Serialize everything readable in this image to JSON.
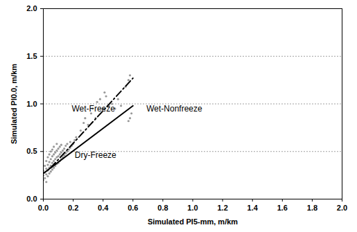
{
  "chart_data": {
    "type": "scatter",
    "x_label": "Simulated PI5-mm, m/km",
    "y_label": "Simulated PI0.0, m/km",
    "xlim": [
      0,
      2
    ],
    "ylim": [
      0,
      2
    ],
    "xticks": [
      {
        "value": 0,
        "label": "0.0"
      },
      {
        "value": 0.2,
        "label": "0.2"
      },
      {
        "value": 0.4,
        "label": "0.4"
      },
      {
        "value": 0.6,
        "label": "0.6"
      },
      {
        "value": 0.8,
        "label": "0.8"
      },
      {
        "value": 1,
        "label": "1.0"
      },
      {
        "value": 1.2,
        "label": "1.2"
      },
      {
        "value": 1.4,
        "label": "1.4"
      },
      {
        "value": 1.6,
        "label": "1.6"
      },
      {
        "value": 1.8,
        "label": "1.8"
      },
      {
        "value": 2,
        "label": "2.0"
      }
    ],
    "yticks": [
      {
        "value": 0,
        "label": "0.0"
      },
      {
        "value": 0.5,
        "label": "0.5"
      },
      {
        "value": 1,
        "label": "1.0"
      },
      {
        "value": 1.5,
        "label": "1.5"
      },
      {
        "value": 2,
        "label": "2.0"
      }
    ],
    "grid": true,
    "series": [
      {
        "type": "scatter",
        "color": "#999999",
        "marker": "circle",
        "x": [
          0.0,
          0.0,
          0.0,
          0.01,
          0.01,
          0.01,
          0.02,
          0.02,
          0.02,
          0.02,
          0.03,
          0.03,
          0.03,
          0.03,
          0.04,
          0.04,
          0.04,
          0.04,
          0.05,
          0.05,
          0.05,
          0.05,
          0.06,
          0.06,
          0.06,
          0.06,
          0.07,
          0.07,
          0.07,
          0.07,
          0.08,
          0.08,
          0.08,
          0.09,
          0.09,
          0.09,
          0.09,
          0.1,
          0.1,
          0.1,
          0.11,
          0.11,
          0.11,
          0.12,
          0.12,
          0.12,
          0.13,
          0.13,
          0.14,
          0.14,
          0.15,
          0.15,
          0.16,
          0.16,
          0.17,
          0.18,
          0.18,
          0.19,
          0.2,
          0.21,
          0.22,
          0.25,
          0.27,
          0.28,
          0.3,
          0.32,
          0.33,
          0.35,
          0.36,
          0.38,
          0.4,
          0.41,
          0.42,
          0.44,
          0.46,
          0.48,
          0.5,
          0.52,
          0.55,
          0.57,
          0.58,
          0.58,
          0.59,
          0.57
        ],
        "values": [
          0.2,
          0.25,
          0.3,
          0.22,
          0.28,
          0.35,
          0.18,
          0.26,
          0.32,
          0.4,
          0.24,
          0.3,
          0.36,
          0.44,
          0.27,
          0.33,
          0.39,
          0.47,
          0.29,
          0.35,
          0.42,
          0.5,
          0.31,
          0.38,
          0.45,
          0.52,
          0.33,
          0.4,
          0.47,
          0.55,
          0.35,
          0.42,
          0.49,
          0.37,
          0.44,
          0.51,
          0.58,
          0.38,
          0.45,
          0.53,
          0.4,
          0.47,
          0.55,
          0.42,
          0.49,
          0.57,
          0.44,
          0.51,
          0.46,
          0.53,
          0.48,
          0.56,
          0.5,
          0.58,
          0.52,
          0.54,
          0.6,
          0.56,
          0.58,
          0.62,
          0.65,
          0.72,
          0.8,
          0.85,
          0.78,
          0.9,
          0.95,
          0.85,
          1.02,
          1.05,
          0.95,
          1.12,
          1.08,
          0.98,
          1.0,
          0.95,
          1.05,
          0.98,
          1.18,
          1.25,
          1.3,
          0.85,
          0.9,
          0.82
        ]
      },
      {
        "type": "line",
        "color": "#000000",
        "line_style": "solid",
        "x": [
          0,
          0.6
        ],
        "values": [
          0.27,
          0.98
        ]
      },
      {
        "type": "line",
        "color": "#000000",
        "line_style": "dashdot",
        "x": [
          0.05,
          0.6
        ],
        "values": [
          0.33,
          1.27
        ]
      }
    ],
    "annotations": [
      {
        "text": "Wet-Freeze",
        "x": 0.19,
        "y": 0.95
      },
      {
        "text": "Dry-Freeze",
        "x": 0.21,
        "y": 0.46
      },
      {
        "text": "Wet-Nonfreeze",
        "x": 0.69,
        "y": 0.95
      }
    ]
  }
}
